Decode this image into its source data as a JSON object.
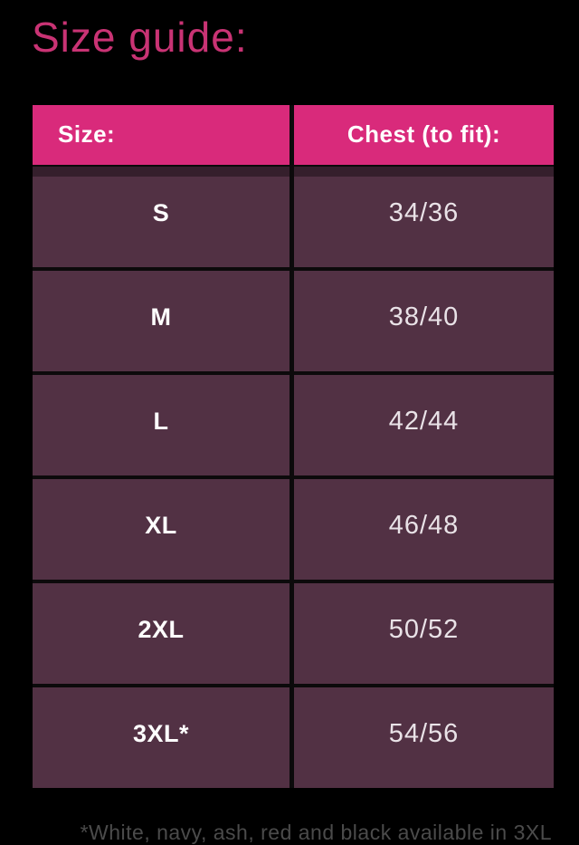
{
  "page": {
    "title": "Size guide:",
    "footnote": "*White, navy, ash, red and black available in 3XL"
  },
  "table": {
    "headers": [
      "Size:",
      "Chest (to fit):"
    ],
    "rows": [
      {
        "size": "S",
        "chest": "34/36"
      },
      {
        "size": "M",
        "chest": "38/40"
      },
      {
        "size": "L",
        "chest": "42/44"
      },
      {
        "size": "XL",
        "chest": "46/48"
      },
      {
        "size": "2XL",
        "chest": "50/52"
      },
      {
        "size": "3XL*",
        "chest": "54/56"
      }
    ]
  },
  "colors": {
    "background": "#000000",
    "title_pink": "#c93374",
    "header_pink": "#d92a7b",
    "row_plum": "#523144",
    "divider_black": "#0c0a0b",
    "value_text": "#e9e2e7",
    "footnote_gray": "#4b4b4b"
  }
}
